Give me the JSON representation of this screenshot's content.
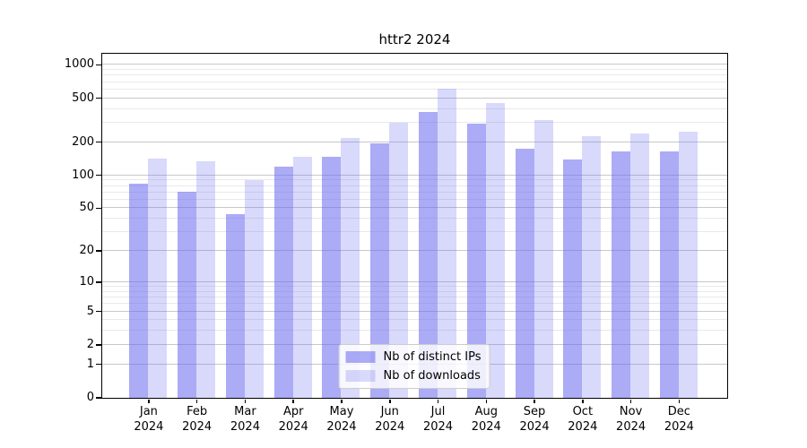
{
  "chart_data": {
    "type": "bar",
    "title": "httr2 2024",
    "categories": [
      "Jan\n2024",
      "Feb\n2024",
      "Mar\n2024",
      "Apr\n2024",
      "May\n2024",
      "Jun\n2024",
      "Jul\n2024",
      "Aug\n2024",
      "Sep\n2024",
      "Oct\n2024",
      "Nov\n2024",
      "Dec\n2024"
    ],
    "series": [
      {
        "name": "Nb of distinct IPs",
        "values": [
          83,
          70,
          44,
          120,
          147,
          192,
          370,
          292,
          174,
          137,
          164,
          162
        ],
        "color_hex": "#6666ee",
        "fill_alpha": 0.55,
        "css_color": "rgba(102,102,238,0.55)"
      },
      {
        "name": "Nb of downloads",
        "values": [
          140,
          134,
          90,
          146,
          218,
          296,
          603,
          449,
          313,
          224,
          237,
          246
        ],
        "color_hex": "#6666ee",
        "fill_alpha": 0.25,
        "css_color": "rgba(102,102,238,0.25)"
      }
    ],
    "xlabel": "",
    "ylabel": "",
    "y_scale": "log1p",
    "y_ticks": [
      0,
      1,
      2,
      5,
      10,
      20,
      50,
      100,
      200,
      500,
      1000
    ],
    "y_minor_ticks": [
      3,
      4,
      6,
      7,
      8,
      9,
      30,
      40,
      60,
      70,
      80,
      90,
      300,
      400,
      600,
      700,
      800,
      900
    ],
    "ylim": [
      0,
      1258
    ],
    "grid": "on",
    "legend": {
      "position": "lower center"
    },
    "colors": {
      "bar_dark_rendered": "#aaaaf6",
      "bar_light_rendered": "#dadafa",
      "grid_major": "#c8c8c8",
      "grid_minor": "#e9e9e9",
      "axis": "#000000",
      "background": "#ffffff"
    }
  }
}
